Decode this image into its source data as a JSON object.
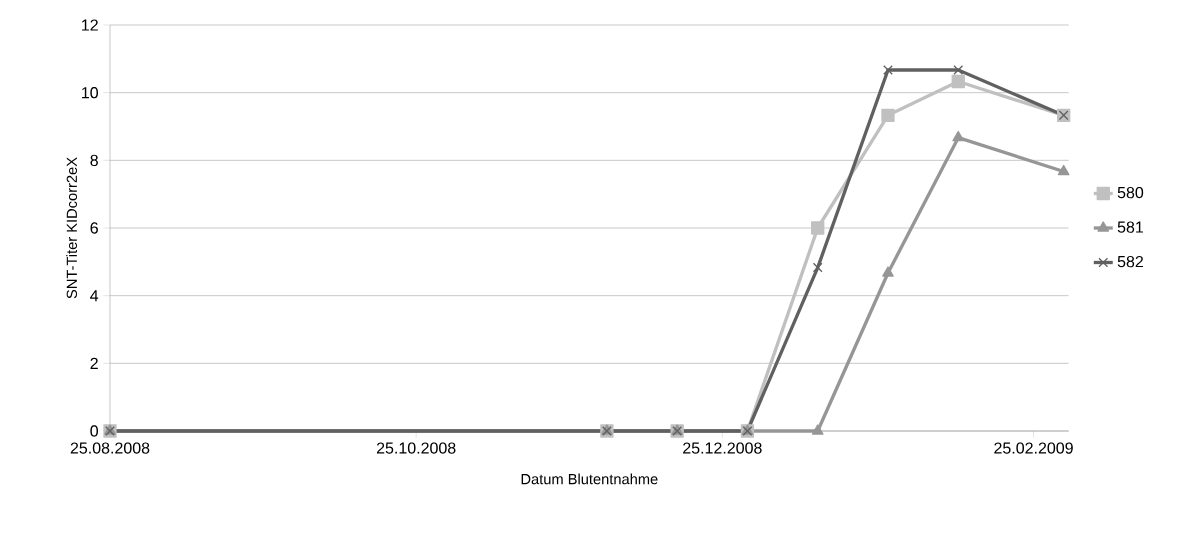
{
  "chart_data": {
    "type": "line",
    "xlabel": "Datum Blutentnahme",
    "ylabel": "SNT-Titer KIDcorr2eX",
    "x": [
      "2008-08-25",
      "2008-12-02",
      "2008-12-16",
      "2008-12-30",
      "2009-01-13",
      "2009-01-27",
      "2009-02-10",
      "2009-03-03"
    ],
    "series": [
      {
        "name": "580",
        "color": "#c0c0c0",
        "marker": "square",
        "values": [
          0,
          0,
          0,
          0,
          6,
          9.33,
          10.33,
          9.33
        ]
      },
      {
        "name": "581",
        "color": "#969696",
        "marker": "triangle",
        "values": [
          0,
          0,
          0,
          0,
          0,
          4.67,
          8.67,
          7.67
        ]
      },
      {
        "name": "582",
        "color": "#606060",
        "marker": "cross",
        "values": [
          0,
          0,
          0,
          0,
          4.83,
          10.67,
          10.67,
          9.33
        ]
      }
    ],
    "xlim": [
      "2008-08-25",
      "2009-03-04"
    ],
    "xticks": [
      {
        "value": "2008-08-25",
        "label": "25.08.2008"
      },
      {
        "value": "2008-10-25",
        "label": "25.10.2008"
      },
      {
        "value": "2008-12-25",
        "label": "25.12.2008"
      },
      {
        "value": "2009-02-25",
        "label": "25.02.2009"
      }
    ],
    "ylim": [
      0,
      12
    ],
    "yticks": [
      0,
      2,
      4,
      6,
      8,
      10,
      12
    ],
    "grid": "y",
    "legend": "right",
    "line_style": "solid"
  }
}
